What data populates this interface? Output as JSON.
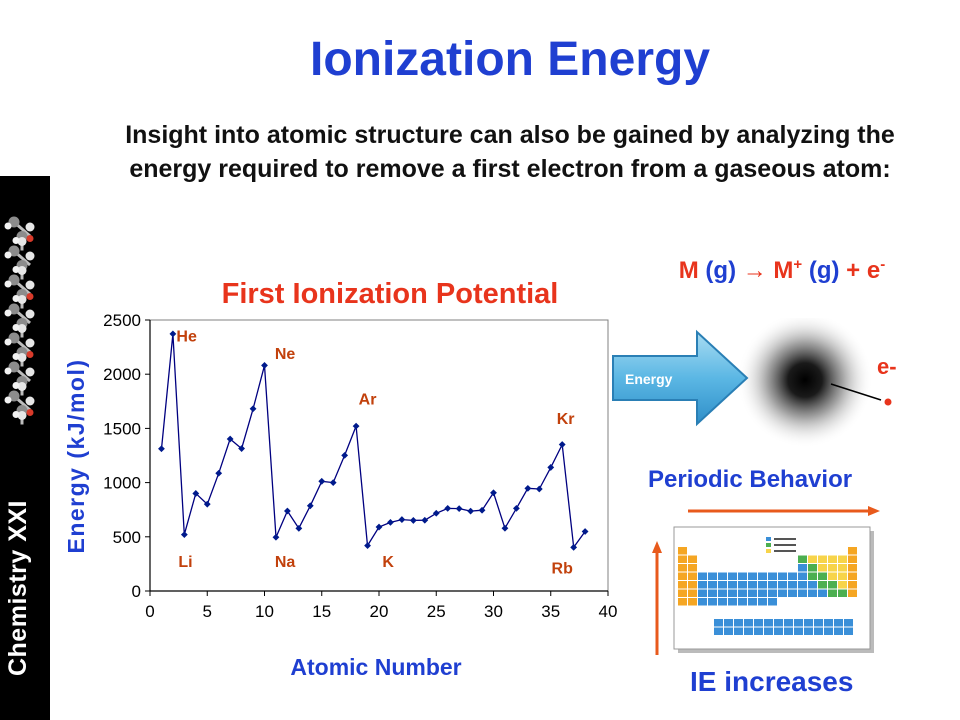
{
  "slide": {
    "title": "Ionization Energy",
    "intro": "Insight into atomic structure can also be gained by analyzing the energy required to remove a first electron from a gaseous atom:",
    "sidebar_text": "Chemistry XXI"
  },
  "equation": {
    "m": "M",
    "g1": " (g) ",
    "m2": "M",
    "plus_sup": "+",
    "g2": " (g) ",
    "plus": "+ ",
    "e": "e",
    "minus_sup": "-"
  },
  "diagram": {
    "energy_label": "Energy",
    "electron_label": "e-"
  },
  "periodic": {
    "behavior_label": "Periodic Behavior",
    "ie_label": "IE increases"
  },
  "colors": {
    "title_blue": "#1f3fd1",
    "chart_red": "#e8341c",
    "element_label": "#c2410c",
    "line": "#000080",
    "marker": "#001a8c"
  },
  "chart_data": {
    "type": "line",
    "title": "First Ionization Potential",
    "xlabel": "Atomic Number",
    "ylabel": "Energy (kJ/mol)",
    "xlim": [
      0,
      40
    ],
    "ylim": [
      0,
      2500
    ],
    "xticks": [
      0,
      5,
      10,
      15,
      20,
      25,
      30,
      35,
      40
    ],
    "yticks": [
      0,
      500,
      1000,
      1500,
      2000,
      2500
    ],
    "grid": false,
    "x": [
      1,
      2,
      3,
      4,
      5,
      6,
      7,
      8,
      9,
      10,
      11,
      12,
      13,
      14,
      15,
      16,
      17,
      18,
      19,
      20,
      21,
      22,
      23,
      24,
      25,
      26,
      27,
      28,
      29,
      30,
      31,
      32,
      33,
      34,
      35,
      36,
      37,
      38
    ],
    "values": [
      1312,
      2372,
      520,
      900,
      801,
      1086,
      1402,
      1314,
      1681,
      2081,
      496,
      738,
      578,
      786,
      1012,
      1000,
      1251,
      1521,
      419,
      590,
      633,
      659,
      651,
      653,
      717,
      762,
      760,
      737,
      745,
      906,
      579,
      762,
      947,
      941,
      1140,
      1351,
      403,
      549
    ],
    "annotations": [
      {
        "text": "He",
        "x": 3.2,
        "y": 2300
      },
      {
        "text": "Ne",
        "x": 11.8,
        "y": 2140
      },
      {
        "text": "Ar",
        "x": 19.0,
        "y": 1720
      },
      {
        "text": "Kr",
        "x": 36.3,
        "y": 1540
      },
      {
        "text": "Li",
        "x": 3.1,
        "y": 220
      },
      {
        "text": "Na",
        "x": 11.8,
        "y": 220
      },
      {
        "text": "K",
        "x": 20.8,
        "y": 220
      },
      {
        "text": "Rb",
        "x": 36.0,
        "y": 160
      }
    ]
  }
}
